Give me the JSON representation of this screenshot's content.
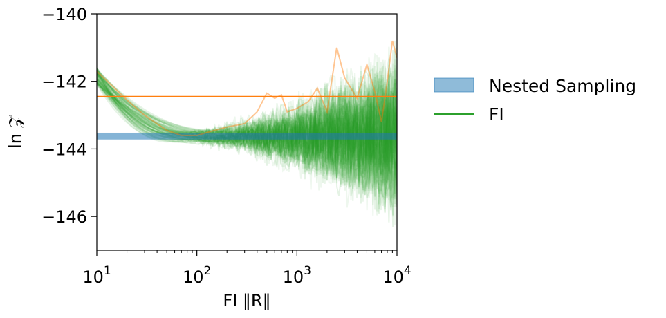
{
  "chart_data": {
    "type": "line",
    "title": "",
    "xlabel": "FI ‖R‖",
    "ylabel": "ln 𝒵",
    "xscale": "log",
    "xlim": [
      10,
      10000
    ],
    "ylim": [
      -147,
      -140
    ],
    "grid": false,
    "x_ticks": [
      {
        "value": 10,
        "base": "10",
        "exp": "1"
      },
      {
        "value": 100,
        "base": "10",
        "exp": "2"
      },
      {
        "value": 1000,
        "base": "10",
        "exp": "3"
      },
      {
        "value": 10000,
        "base": "10",
        "exp": "4"
      }
    ],
    "y_ticks": [
      {
        "value": -140,
        "label": "−140"
      },
      {
        "value": -142,
        "label": "−142"
      },
      {
        "value": -144,
        "label": "−144"
      },
      {
        "value": -146,
        "label": "−146"
      }
    ],
    "legend": {
      "placement": "outside-right",
      "entries": [
        {
          "label": "Nested Sampling",
          "color": "#1f77b4",
          "kind": "band"
        },
        {
          "label": "FI",
          "color": "#2ca02c",
          "kind": "line"
        }
      ]
    },
    "nested_sampling_band": {
      "low": -143.72,
      "high": -143.52,
      "color": "#1f77b4"
    },
    "reference_line": {
      "y": -142.45,
      "color": "#ff7f0e"
    },
    "fi_curves": {
      "count": 90,
      "color": "#2ca02c",
      "opacity": 0.08
    },
    "highlight_curve": {
      "color": "#ff7f0e",
      "x": [
        10,
        15,
        20,
        30,
        50,
        70,
        100,
        150,
        200,
        300,
        400,
        500,
        600,
        700,
        800,
        1000,
        1300,
        1600,
        2000,
        2500,
        3000,
        4000,
        5000,
        6000,
        7000,
        8000,
        9000,
        10000
      ],
      "y": [
        -141.7,
        -142.2,
        -142.55,
        -143.0,
        -143.45,
        -143.6,
        -143.6,
        -143.45,
        -143.35,
        -143.25,
        -142.9,
        -142.35,
        -142.5,
        -142.4,
        -142.9,
        -142.8,
        -142.6,
        -142.2,
        -142.9,
        -141.0,
        -141.9,
        -142.5,
        -141.5,
        -142.3,
        -143.2,
        -142.0,
        -140.8,
        -141.3
      ]
    }
  }
}
